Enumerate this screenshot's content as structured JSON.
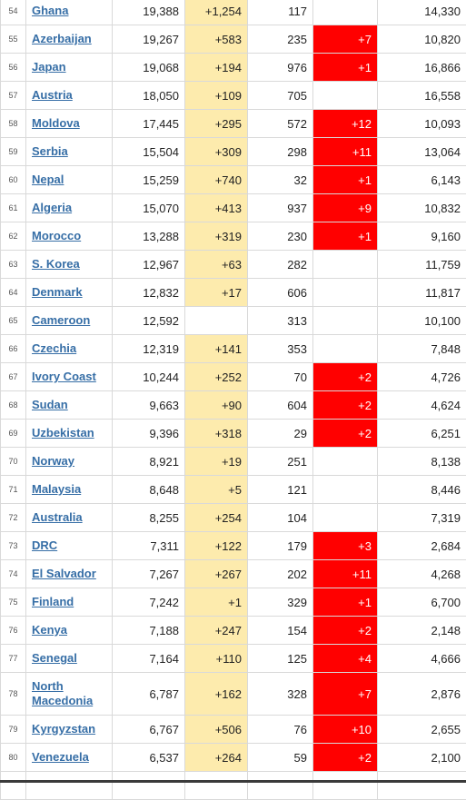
{
  "rows": [
    {
      "rank": "54",
      "country": "Ghana",
      "cases": "19,388",
      "new_cases": "+1,254",
      "deaths": "117",
      "new_deaths": "",
      "recovered": "14,330"
    },
    {
      "rank": "55",
      "country": "Azerbaijan",
      "cases": "19,267",
      "new_cases": "+583",
      "deaths": "235",
      "new_deaths": "+7",
      "recovered": "10,820"
    },
    {
      "rank": "56",
      "country": "Japan",
      "cases": "19,068",
      "new_cases": "+194",
      "deaths": "976",
      "new_deaths": "+1",
      "recovered": "16,866"
    },
    {
      "rank": "57",
      "country": "Austria",
      "cases": "18,050",
      "new_cases": "+109",
      "deaths": "705",
      "new_deaths": "",
      "recovered": "16,558"
    },
    {
      "rank": "58",
      "country": "Moldova",
      "cases": "17,445",
      "new_cases": "+295",
      "deaths": "572",
      "new_deaths": "+12",
      "recovered": "10,093"
    },
    {
      "rank": "59",
      "country": "Serbia",
      "cases": "15,504",
      "new_cases": "+309",
      "deaths": "298",
      "new_deaths": "+11",
      "recovered": "13,064"
    },
    {
      "rank": "60",
      "country": "Nepal",
      "cases": "15,259",
      "new_cases": "+740",
      "deaths": "32",
      "new_deaths": "+1",
      "recovered": "6,143"
    },
    {
      "rank": "61",
      "country": "Algeria",
      "cases": "15,070",
      "new_cases": "+413",
      "deaths": "937",
      "new_deaths": "+9",
      "recovered": "10,832"
    },
    {
      "rank": "62",
      "country": "Morocco",
      "cases": "13,288",
      "new_cases": "+319",
      "deaths": "230",
      "new_deaths": "+1",
      "recovered": "9,160"
    },
    {
      "rank": "63",
      "country": "S. Korea",
      "cases": "12,967",
      "new_cases": "+63",
      "deaths": "282",
      "new_deaths": "",
      "recovered": "11,759"
    },
    {
      "rank": "64",
      "country": "Denmark",
      "cases": "12,832",
      "new_cases": "+17",
      "deaths": "606",
      "new_deaths": "",
      "recovered": "11,817"
    },
    {
      "rank": "65",
      "country": "Cameroon",
      "cases": "12,592",
      "new_cases": "",
      "deaths": "313",
      "new_deaths": "",
      "recovered": "10,100"
    },
    {
      "rank": "66",
      "country": "Czechia",
      "cases": "12,319",
      "new_cases": "+141",
      "deaths": "353",
      "new_deaths": "",
      "recovered": "7,848"
    },
    {
      "rank": "67",
      "country": "Ivory Coast",
      "cases": "10,244",
      "new_cases": "+252",
      "deaths": "70",
      "new_deaths": "+2",
      "recovered": "4,726"
    },
    {
      "rank": "68",
      "country": "Sudan",
      "cases": "9,663",
      "new_cases": "+90",
      "deaths": "604",
      "new_deaths": "+2",
      "recovered": "4,624"
    },
    {
      "rank": "69",
      "country": "Uzbekistan",
      "cases": "9,396",
      "new_cases": "+318",
      "deaths": "29",
      "new_deaths": "+2",
      "recovered": "6,251"
    },
    {
      "rank": "70",
      "country": "Norway",
      "cases": "8,921",
      "new_cases": "+19",
      "deaths": "251",
      "new_deaths": "",
      "recovered": "8,138"
    },
    {
      "rank": "71",
      "country": "Malaysia",
      "cases": "8,648",
      "new_cases": "+5",
      "deaths": "121",
      "new_deaths": "",
      "recovered": "8,446"
    },
    {
      "rank": "72",
      "country": "Australia",
      "cases": "8,255",
      "new_cases": "+254",
      "deaths": "104",
      "new_deaths": "",
      "recovered": "7,319"
    },
    {
      "rank": "73",
      "country": "DRC",
      "cases": "7,311",
      "new_cases": "+122",
      "deaths": "179",
      "new_deaths": "+3",
      "recovered": "2,684"
    },
    {
      "rank": "74",
      "country": "El Salvador",
      "cases": "7,267",
      "new_cases": "+267",
      "deaths": "202",
      "new_deaths": "+11",
      "recovered": "4,268"
    },
    {
      "rank": "75",
      "country": "Finland",
      "cases": "7,242",
      "new_cases": "+1",
      "deaths": "329",
      "new_deaths": "+1",
      "recovered": "6,700"
    },
    {
      "rank": "76",
      "country": "Kenya",
      "cases": "7,188",
      "new_cases": "+247",
      "deaths": "154",
      "new_deaths": "+2",
      "recovered": "2,148"
    },
    {
      "rank": "77",
      "country": "Senegal",
      "cases": "7,164",
      "new_cases": "+110",
      "deaths": "125",
      "new_deaths": "+4",
      "recovered": "4,666"
    },
    {
      "rank": "78",
      "country": "North Macedonia",
      "cases": "6,787",
      "new_cases": "+162",
      "deaths": "328",
      "new_deaths": "+7",
      "recovered": "2,876"
    },
    {
      "rank": "79",
      "country": "Kyrgyzstan",
      "cases": "6,767",
      "new_cases": "+506",
      "deaths": "76",
      "new_deaths": "+10",
      "recovered": "2,655"
    },
    {
      "rank": "80",
      "country": "Venezuela",
      "cases": "6,537",
      "new_cases": "+264",
      "deaths": "59",
      "new_deaths": "+2",
      "recovered": "2,100"
    },
    {
      "rank": "",
      "country": "",
      "cases": "",
      "new_cases": "",
      "deaths": "",
      "new_deaths": "",
      "recovered": ""
    }
  ],
  "colors": {
    "new_cases_bg": "#fdebad",
    "new_deaths_bg": "#ff0000",
    "link": "#366ea6",
    "border": "#d9d9d9"
  }
}
